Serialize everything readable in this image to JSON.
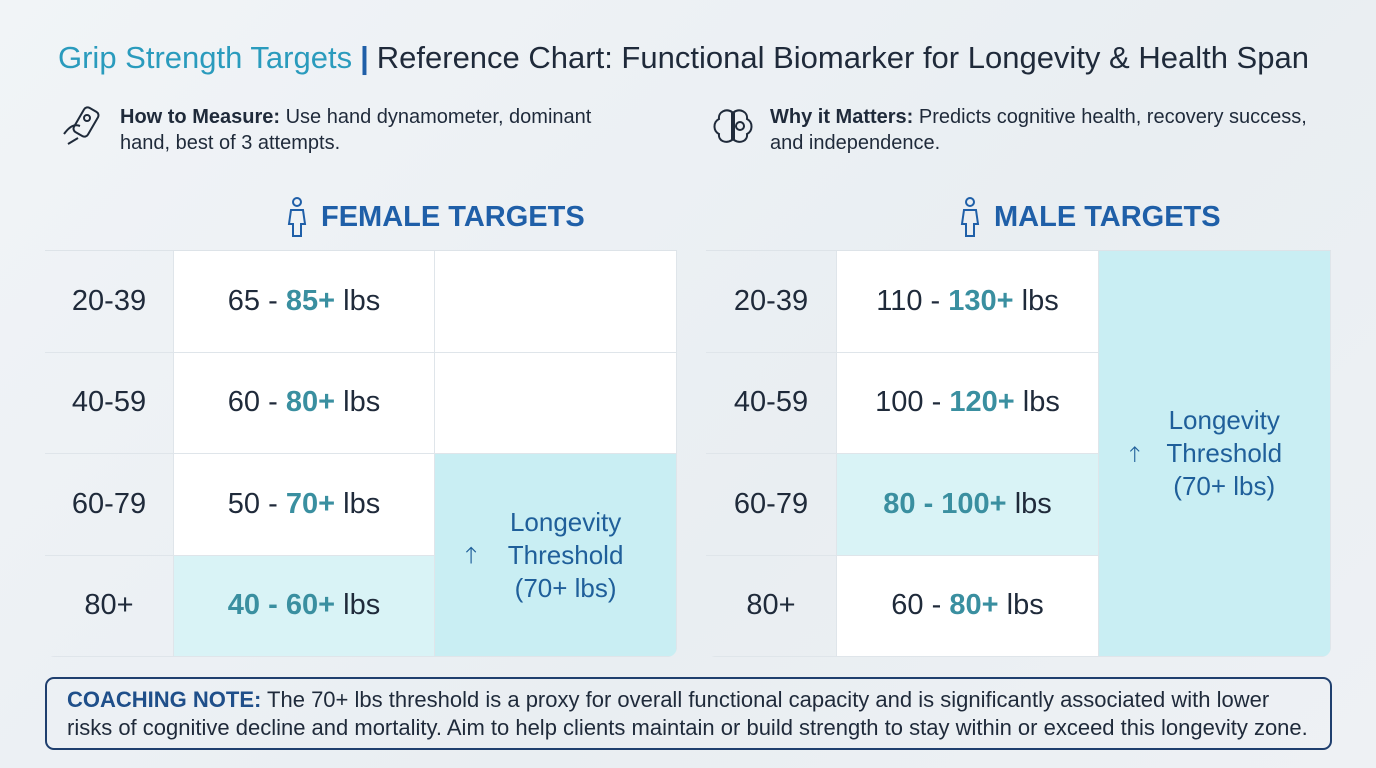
{
  "header": {
    "title": "Grip Strength Targets",
    "divider": "|",
    "subtitle": "Reference Chart: Functional Biomarker for Longevity & Health Span"
  },
  "info": [
    {
      "label": "How to Measure:",
      "text": "Use hand dynamometer, dominant hand, best of 3 attempts."
    },
    {
      "label": "Why it Matters:",
      "text": "Predicts cognitive health, recovery success, and independence."
    }
  ],
  "panels": [
    {
      "title": "FEMALE TARGETS",
      "rows": [
        {
          "age": "20-39",
          "low": "65",
          "sep": "-",
          "high": "85+",
          "unit": "lbs",
          "highlight": false
        },
        {
          "age": "40-59",
          "low": "60",
          "sep": "-",
          "high": "80+",
          "unit": "lbs",
          "highlight": false
        },
        {
          "age": "60-79",
          "low": "50",
          "sep": "-",
          "high": "70+",
          "unit": "lbs",
          "highlight": false
        },
        {
          "age": "80+",
          "low": "40",
          "sep": "-",
          "high": "60+",
          "unit": "lbs",
          "highlight": true
        }
      ],
      "threshold": "Longevity Threshold (70+ lbs)"
    },
    {
      "title": "MALE TARGETS",
      "rows": [
        {
          "age": "20-39",
          "low": "110",
          "sep": "-",
          "high": "130+",
          "unit": "lbs",
          "highlight": false
        },
        {
          "age": "40-59",
          "low": "100",
          "sep": "-",
          "high": "120+",
          "unit": "lbs",
          "highlight": false
        },
        {
          "age": "60-79",
          "low": "80",
          "sep": "-",
          "high": "100+",
          "unit": "lbs",
          "highlight": true
        },
        {
          "age": "80+",
          "low": "60",
          "sep": "-",
          "high": "80+",
          "unit": "lbs",
          "highlight": false
        }
      ],
      "threshold": "Longevity Threshold (70+ lbs)"
    }
  ],
  "note": {
    "label": "COACHING NOTE:",
    "text": "The 70+ lbs threshold is a proxy for overall functional capacity and is significantly associated with lower risks of cognitive decline and mortality. Aim to help clients maintain or build strength to stay within or exceed this longevity zone."
  }
}
